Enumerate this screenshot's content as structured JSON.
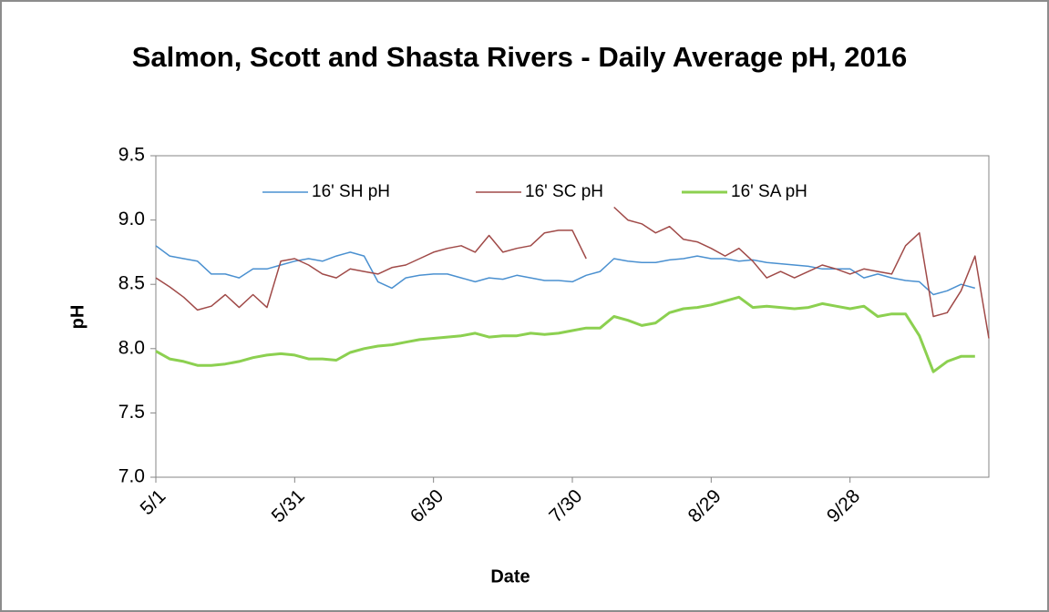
{
  "chart_data": {
    "type": "line",
    "title": "Salmon, Scott and Shasta Rivers - Daily Average pH, 2016",
    "x_label": "Date",
    "y_label": "pH",
    "x": [
      "5/1",
      "5/4",
      "5/7",
      "5/10",
      "5/13",
      "5/16",
      "5/19",
      "5/22",
      "5/25",
      "5/28",
      "5/31",
      "6/3",
      "6/6",
      "6/9",
      "6/12",
      "6/15",
      "6/18",
      "6/21",
      "6/24",
      "6/27",
      "6/30",
      "7/3",
      "7/6",
      "7/9",
      "7/12",
      "7/15",
      "7/18",
      "7/21",
      "7/24",
      "7/27",
      "7/30",
      "8/2",
      "8/5",
      "8/8",
      "8/11",
      "8/14",
      "8/17",
      "8/20",
      "8/23",
      "8/26",
      "8/29",
      "9/1",
      "9/4",
      "9/7",
      "9/10",
      "9/13",
      "9/16",
      "9/19",
      "9/22",
      "9/25",
      "9/28",
      "10/1",
      "10/4",
      "10/7",
      "10/10",
      "10/13",
      "10/16",
      "10/19",
      "10/22",
      "10/25",
      "10/28"
    ],
    "series": [
      {
        "name": "16' SH pH",
        "color": "#4a90d0",
        "width": 1.5,
        "values": [
          8.8,
          8.72,
          8.7,
          8.68,
          8.58,
          8.58,
          8.55,
          8.62,
          8.62,
          8.65,
          8.68,
          8.7,
          8.68,
          8.72,
          8.75,
          8.72,
          8.52,
          8.47,
          8.55,
          8.57,
          8.58,
          8.58,
          8.55,
          8.52,
          8.55,
          8.54,
          8.57,
          8.55,
          8.53,
          8.53,
          8.52,
          8.57,
          8.6,
          8.7,
          8.68,
          8.67,
          8.67,
          8.69,
          8.7,
          8.72,
          8.7,
          8.7,
          8.68,
          8.69,
          8.67,
          8.66,
          8.65,
          8.64,
          8.62,
          8.62,
          8.62,
          8.55,
          8.58,
          8.55,
          8.53,
          8.52,
          8.42,
          8.45,
          8.5,
          8.47,
          null
        ]
      },
      {
        "name": "16' SC pH",
        "color": "#a04a48",
        "width": 1.5,
        "values": [
          8.55,
          8.48,
          8.4,
          8.3,
          8.33,
          8.42,
          8.32,
          8.42,
          8.32,
          8.68,
          8.7,
          8.65,
          8.58,
          8.55,
          8.62,
          8.6,
          8.58,
          8.63,
          8.65,
          8.7,
          8.75,
          8.78,
          8.8,
          8.75,
          8.88,
          8.75,
          8.78,
          8.8,
          8.9,
          8.92,
          8.92,
          8.7,
          null,
          9.1,
          9.0,
          8.97,
          8.9,
          8.95,
          8.85,
          8.83,
          8.78,
          8.72,
          8.78,
          8.68,
          8.55,
          8.6,
          8.55,
          8.6,
          8.65,
          8.62,
          8.58,
          8.62,
          8.6,
          8.58,
          8.8,
          8.9,
          8.25,
          8.28,
          8.45,
          8.72,
          8.08
        ]
      },
      {
        "name": "16' SA pH",
        "color": "#8cd050",
        "width": 3,
        "values": [
          7.98,
          7.92,
          7.9,
          7.87,
          7.87,
          7.88,
          7.9,
          7.93,
          7.95,
          7.96,
          7.95,
          7.92,
          7.92,
          7.91,
          7.97,
          8.0,
          8.02,
          8.03,
          8.05,
          8.07,
          8.08,
          8.09,
          8.1,
          8.12,
          8.09,
          8.1,
          8.1,
          8.12,
          8.11,
          8.12,
          8.14,
          8.16,
          8.16,
          8.25,
          8.22,
          8.18,
          8.2,
          8.28,
          8.31,
          8.32,
          8.34,
          8.37,
          8.4,
          8.32,
          8.33,
          8.32,
          8.31,
          8.32,
          8.35,
          8.33,
          8.31,
          8.33,
          8.25,
          8.27,
          8.27,
          8.1,
          7.82,
          7.9,
          7.94,
          7.94,
          null
        ]
      }
    ],
    "xlim": [
      "5/1",
      "10/28"
    ],
    "xticks": [
      "5/1",
      "5/31",
      "6/30",
      "7/30",
      "8/29",
      "9/28"
    ],
    "ylim": [
      7.0,
      9.5
    ],
    "yticks": [
      {
        "value": 7.0,
        "label": "7.0"
      },
      {
        "value": 7.5,
        "label": "7.5"
      },
      {
        "value": 8.0,
        "label": "8.0"
      },
      {
        "value": 8.5,
        "label": "8.5"
      },
      {
        "value": 9.0,
        "label": "9.0"
      },
      {
        "value": 9.5,
        "label": "9.5"
      }
    ],
    "grid": false,
    "legend": "top"
  }
}
